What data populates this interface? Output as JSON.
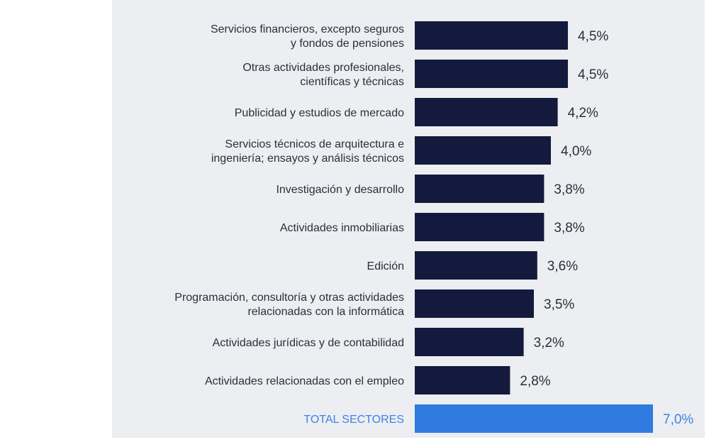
{
  "chart_data": {
    "type": "bar",
    "orientation": "horizontal",
    "categories": [
      [
        "Servicios financieros, excepto seguros",
        "y fondos de pensiones"
      ],
      [
        "Otras actividades profesionales,",
        "científicas y técnicas"
      ],
      [
        "Publicidad y estudios de mercado"
      ],
      [
        "Servicios técnicos de arquitectura e",
        "ingeniería; ensayos y análisis técnicos"
      ],
      [
        "Investigación y desarrollo"
      ],
      [
        "Actividades inmobiliarias"
      ],
      [
        "Edición"
      ],
      [
        "Programación, consultoría y otras actividades",
        "relacionadas con la informática"
      ],
      [
        "Actividades jurídicas y de contabilidad"
      ],
      [
        "Actividades relacionadas con el empleo"
      ],
      [
        "TOTAL SECTORES"
      ]
    ],
    "values": [
      4.5,
      4.5,
      4.2,
      4.0,
      3.8,
      3.8,
      3.6,
      3.5,
      3.2,
      2.8,
      7.0
    ],
    "value_labels": [
      "4,5%",
      "4,5%",
      "4,2%",
      "4,0%",
      "3,8%",
      "3,8%",
      "3,6%",
      "3,5%",
      "3,2%",
      "2,8%",
      "7,0%"
    ],
    "highlight_index": 10,
    "xlim": [
      0,
      7.0
    ],
    "grid": false,
    "legend": "none",
    "colors": {
      "bar": "#141a3d",
      "highlight_bar": "#2f7be0",
      "highlight_text": "#3f82e8",
      "text": "#2b2f3a",
      "panel": "#eceef1"
    }
  }
}
